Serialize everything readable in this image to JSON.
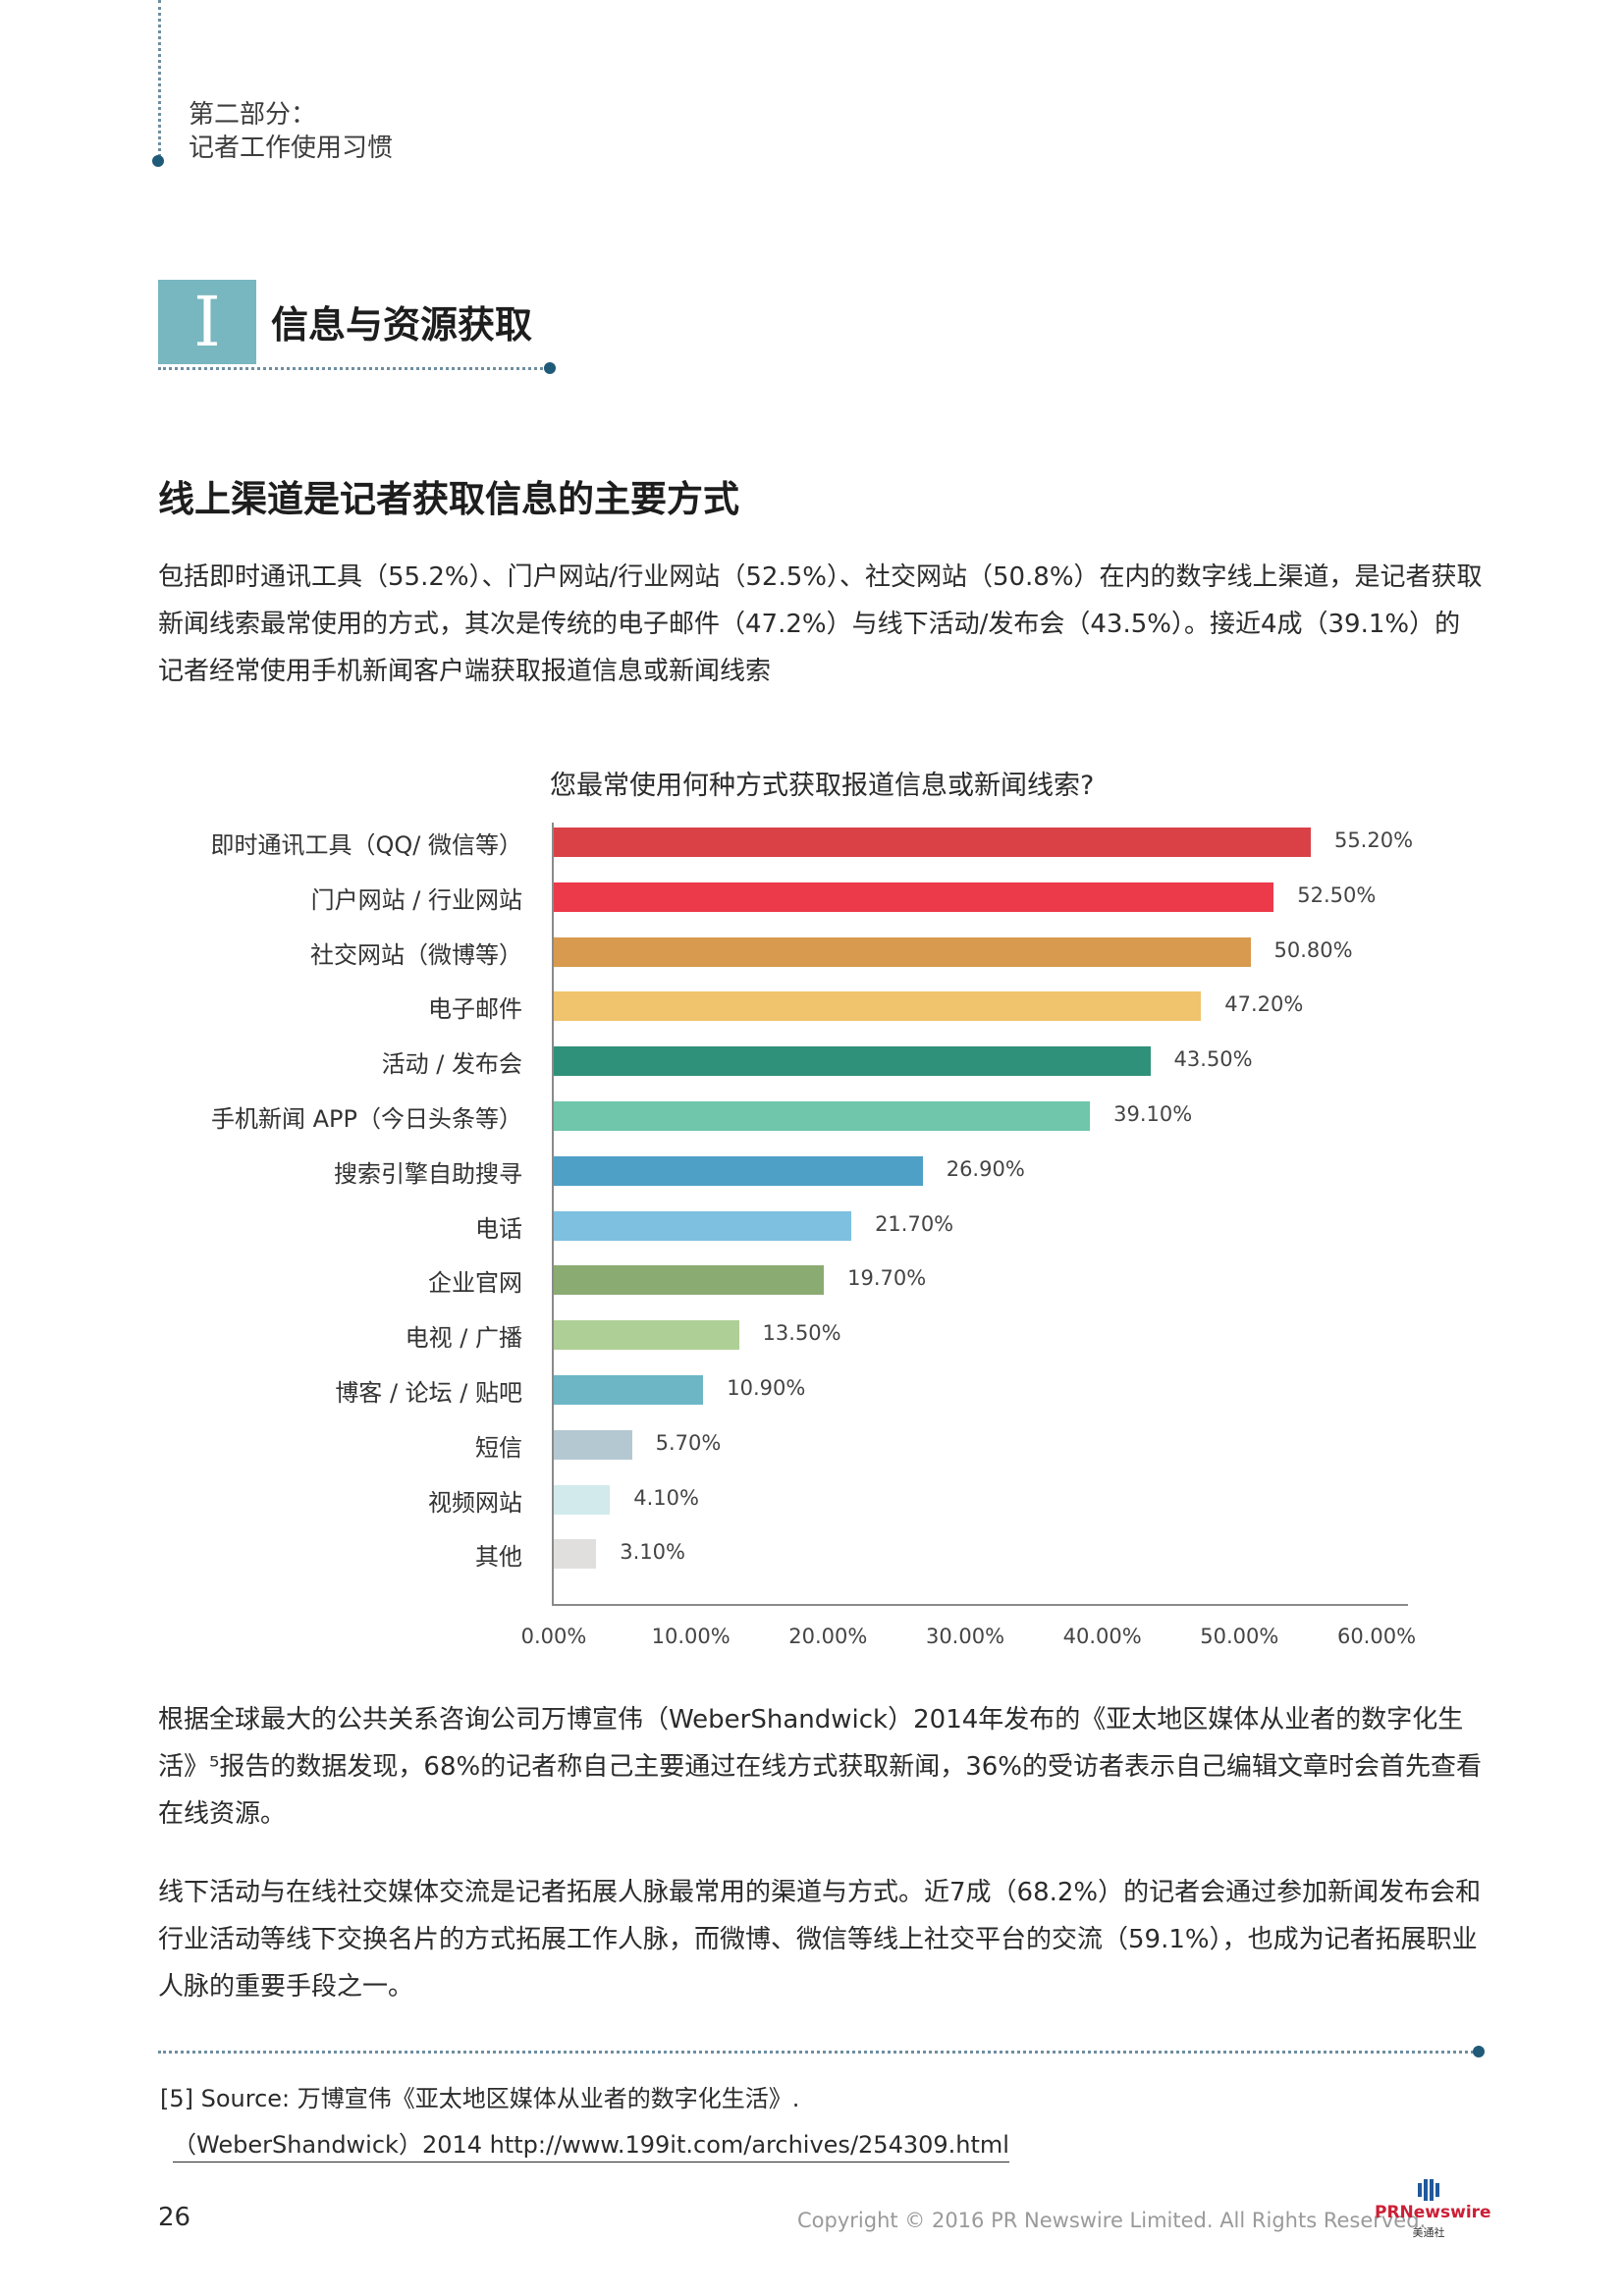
{
  "header": {
    "part": "第二部分：",
    "part_subtitle": "记者工作使用习惯"
  },
  "chapter": {
    "numeral": "I",
    "title": "信息与资源获取"
  },
  "section": {
    "heading": "线上渠道是记者获取信息的主要方式",
    "paragraph1": "包括即时通讯工具（55.2%）、门户网站/行业网站（52.5%）、社交网站（50.8%）在内的数字线上渠道，是记者获取新闻线索最常使用的方式，其次是传统的电子邮件（47.2%）与线下活动/发布会（43.5%）。接近4成（39.1%）的记者经常使用手机新闻客户端获取报道信息或新闻线索",
    "paragraph2": "根据全球最大的公共关系咨询公司万博宣伟（WeberShandwick）2014年发布的《亚太地区媒体从业者的数字化生活》⁵报告的数据发现，68%的记者称自己主要通过在线方式获取新闻，36%的受访者表示自己编辑文章时会首先查看在线资源。",
    "paragraph3": "线下活动与在线社交媒体交流是记者拓展人脉最常用的渠道与方式。近7成（68.2%）的记者会通过参加新闻发布会和行业活动等线下交换名片的方式拓展工作人脉，而微博、微信等线上社交平台的交流（59.1%），也成为记者拓展职业人脉的重要手段之一。"
  },
  "chart_data": {
    "type": "bar",
    "orientation": "horizontal",
    "title": "您最常使用何种方式获取报道信息或新闻线索?",
    "categories": [
      "即时通讯工具（QQ/ 微信等）",
      "门户网站 / 行业网站",
      "社交网站（微博等）",
      "电子邮件",
      "活动 / 发布会",
      "手机新闻 APP（今日头条等）",
      "搜索引擎自助搜寻",
      "电话",
      "企业官网",
      "电视 / 广播",
      "博客 / 论坛 / 贴吧",
      "短信",
      "视频网站",
      "其他"
    ],
    "values": [
      55.2,
      52.5,
      50.8,
      47.2,
      43.5,
      39.1,
      26.9,
      21.7,
      19.7,
      13.5,
      10.9,
      5.7,
      4.1,
      3.1
    ],
    "value_labels": [
      "55.20%",
      "52.50%",
      "50.80%",
      "47.20%",
      "43.50%",
      "39.10%",
      "26.90%",
      "21.70%",
      "19.70%",
      "13.50%",
      "10.90%",
      "5.70%",
      "4.10%",
      "3.10%"
    ],
    "colors": [
      "#d94147",
      "#ec3a4b",
      "#d89a4e",
      "#f0c46c",
      "#2f9179",
      "#6fc6aa",
      "#4ea0c6",
      "#7ec0e0",
      "#8aab72",
      "#aecf96",
      "#6cb6c6",
      "#b4c8d2",
      "#d2eaec",
      "#e1dfdd"
    ],
    "xlim": [
      0,
      60
    ],
    "x_ticks": [
      "0.00%",
      "10.00%",
      "20.00%",
      "30.00%",
      "40.00%",
      "50.00%",
      "60.00%"
    ],
    "xlabel": "",
    "ylabel": "",
    "grid": false
  },
  "footnote": {
    "line1": "[5] Source: 万博宣伟《亚太地区媒体从业者的数字化生活》.",
    "line2": "（WeberShandwick）2014 http://www.199it.com/archives/254309.html"
  },
  "footer": {
    "page_number": "26",
    "copyright": "Copyright © 2016 PR Newswire Limited. All Rights Reserved.",
    "logo_text": "PRNewswire",
    "logo_cn": "美通社"
  }
}
